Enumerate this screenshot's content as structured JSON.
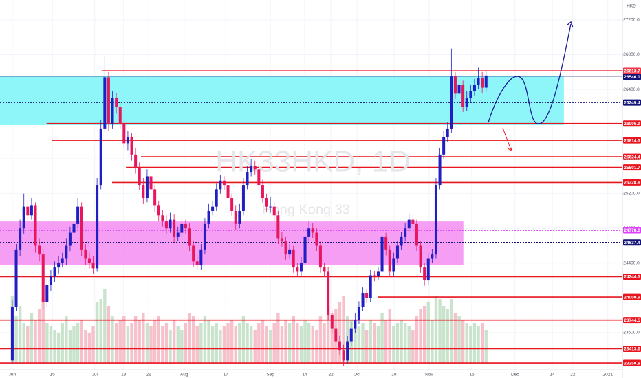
{
  "chart_data": {
    "type": "candlestick",
    "title": "HK33HKD, 1D",
    "subtitle": "Hong Kong 33",
    "currency": "HKD",
    "xlim": [
      -3.2,
      158.4
    ],
    "ylim": [
      23077,
      27429
    ],
    "grid": true,
    "up_color": "#1f1fc4",
    "down_color": "#e8175d",
    "volume_up_color": "#c9e3cc",
    "volume_down_color": "#f6c1cb",
    "xticks": [
      {
        "value": 0,
        "label": "Jun"
      },
      {
        "value": 10.4,
        "label": "15"
      },
      {
        "value": 21.4,
        "label": "Jul"
      },
      {
        "value": 28.9,
        "label": "13"
      },
      {
        "value": 35.4,
        "label": "21"
      },
      {
        "value": 44.6,
        "label": "Aug"
      },
      {
        "value": 55.4,
        "label": "17"
      },
      {
        "value": 67,
        "label": "Sep"
      },
      {
        "value": 75.9,
        "label": "14"
      },
      {
        "value": 82.7,
        "label": "22"
      },
      {
        "value": 89.5,
        "label": "Oct"
      },
      {
        "value": 99.1,
        "label": "19"
      },
      {
        "value": 108.2,
        "label": "Nov"
      },
      {
        "value": 119.3,
        "label": "16"
      },
      {
        "value": 130.5,
        "label": "Dec"
      },
      {
        "value": 140.2,
        "label": "14"
      },
      {
        "value": 145.5,
        "label": "22"
      },
      {
        "value": 154.6,
        "label": "2021"
      }
    ],
    "yticks": [
      {
        "value": 27200,
        "label": "27200.0"
      },
      {
        "value": 26800,
        "label": "26800.0"
      },
      {
        "value": 26400,
        "label": "26400.0"
      },
      {
        "value": 26000,
        "label": "26000.0"
      },
      {
        "value": 25600,
        "label": "25600.0"
      },
      {
        "value": 25200,
        "label": "25200.0"
      },
      {
        "value": 24800,
        "label": "24800.0"
      },
      {
        "value": 24400,
        "label": "24400.0"
      },
      {
        "value": 24000,
        "label": "24000.0"
      },
      {
        "value": 23600,
        "label": "23600.0"
      }
    ],
    "candles": [
      [
        23280,
        23980,
        23250,
        23900
      ],
      [
        23900,
        24620,
        23850,
        24550
      ],
      [
        24550,
        24900,
        24480,
        24800
      ],
      [
        24800,
        25200,
        24740,
        25050
      ],
      [
        25050,
        25120,
        24880,
        24950
      ],
      [
        24950,
        25150,
        24900,
        25060
      ],
      [
        25060,
        25100,
        24520,
        24600
      ],
      [
        24600,
        24680,
        24420,
        24500
      ],
      [
        24500,
        24560,
        23880,
        23950
      ],
      [
        23950,
        24230,
        23900,
        24150
      ],
      [
        24150,
        24320,
        24080,
        24250
      ],
      [
        24250,
        24420,
        24180,
        24350
      ],
      [
        24350,
        24480,
        24280,
        24400
      ],
      [
        24400,
        24520,
        24350,
        24450
      ],
      [
        24450,
        24680,
        24380,
        24600
      ],
      [
        24600,
        24820,
        24540,
        24750
      ],
      [
        24750,
        24930,
        24700,
        24850
      ],
      [
        24850,
        25150,
        24800,
        25050
      ],
      [
        25050,
        25100,
        24480,
        24550
      ],
      [
        24550,
        24620,
        24380,
        24450
      ],
      [
        24450,
        24520,
        24330,
        24400
      ],
      [
        24400,
        24480,
        24280,
        24340
      ],
      [
        24340,
        25380,
        24300,
        25300
      ],
      [
        25300,
        26050,
        25250,
        25950
      ],
      [
        25950,
        26780,
        25900,
        26540
      ],
      [
        26540,
        26600,
        25920,
        26000
      ],
      [
        26000,
        26380,
        25950,
        26300
      ],
      [
        26300,
        26360,
        26120,
        26200
      ],
      [
        26200,
        26260,
        25940,
        26000
      ],
      [
        26000,
        26060,
        25720,
        25780
      ],
      [
        25780,
        25920,
        25700,
        25850
      ],
      [
        25850,
        25900,
        25580,
        25650
      ],
      [
        25650,
        25720,
        25430,
        25500
      ],
      [
        25500,
        25560,
        25240,
        25300
      ],
      [
        25300,
        25380,
        25080,
        25150
      ],
      [
        25150,
        25480,
        25100,
        25400
      ],
      [
        25400,
        25460,
        25180,
        25250
      ],
      [
        25250,
        25300,
        24990,
        25060
      ],
      [
        25060,
        25120,
        24880,
        24950
      ],
      [
        24950,
        25010,
        24820,
        24880
      ],
      [
        24880,
        24950,
        24740,
        24800
      ],
      [
        24800,
        24980,
        24750,
        24900
      ],
      [
        24900,
        24960,
        24640,
        24700
      ],
      [
        24700,
        24820,
        24650,
        24750
      ],
      [
        24750,
        24920,
        24700,
        24850
      ],
      [
        24850,
        24900,
        24740,
        24800
      ],
      [
        24800,
        24860,
        24540,
        24600
      ],
      [
        24600,
        24660,
        24360,
        24420
      ],
      [
        24420,
        24480,
        24320,
        24380
      ],
      [
        24380,
        24620,
        24320,
        24550
      ],
      [
        24550,
        24920,
        24500,
        24850
      ],
      [
        24850,
        25080,
        24800,
        25000
      ],
      [
        25000,
        25120,
        24950,
        25050
      ],
      [
        25050,
        25320,
        25000,
        25250
      ],
      [
        25250,
        25420,
        25200,
        25350
      ],
      [
        25350,
        25400,
        25240,
        25300
      ],
      [
        25300,
        25360,
        25090,
        25150
      ],
      [
        25150,
        25200,
        24940,
        25000
      ],
      [
        25000,
        25060,
        24780,
        24850
      ],
      [
        24850,
        25080,
        24800,
        25000
      ],
      [
        25000,
        25380,
        24950,
        25300
      ],
      [
        25300,
        25520,
        25250,
        25450
      ],
      [
        25450,
        25600,
        25400,
        25520
      ],
      [
        25520,
        25580,
        25420,
        25480
      ],
      [
        25480,
        25540,
        25240,
        25300
      ],
      [
        25300,
        25360,
        25090,
        25150
      ],
      [
        25150,
        25200,
        24990,
        25050
      ],
      [
        25050,
        25160,
        24980,
        25050
      ],
      [
        25050,
        25100,
        24880,
        24950
      ],
      [
        24950,
        25000,
        24620,
        24680
      ],
      [
        24680,
        24760,
        24590,
        24650
      ],
      [
        24650,
        24700,
        24440,
        24500
      ],
      [
        24500,
        24620,
        24450,
        24550
      ],
      [
        24550,
        24600,
        24290,
        24350
      ],
      [
        24350,
        24400,
        24240,
        24300
      ],
      [
        24300,
        24470,
        24250,
        24400
      ],
      [
        24400,
        24780,
        24350,
        24700
      ],
      [
        24700,
        24880,
        24650,
        24800
      ],
      [
        24800,
        24860,
        24690,
        24750
      ],
      [
        24750,
        24800,
        24540,
        24600
      ],
      [
        24600,
        24650,
        24290,
        24350
      ],
      [
        24350,
        24400,
        24240,
        24300
      ],
      [
        24300,
        24360,
        23740,
        23800
      ],
      [
        23800,
        23860,
        23590,
        23650
      ],
      [
        23650,
        23700,
        23440,
        23500
      ],
      [
        23500,
        23560,
        23340,
        23400
      ],
      [
        23400,
        23460,
        23220,
        23280
      ],
      [
        23280,
        23560,
        23240,
        23500
      ],
      [
        23500,
        23720,
        23450,
        23650
      ],
      [
        23650,
        23820,
        23600,
        23750
      ],
      [
        23750,
        23960,
        23700,
        23900
      ],
      [
        23900,
        24120,
        23850,
        24050
      ],
      [
        24050,
        24100,
        23940,
        24000
      ],
      [
        24000,
        24320,
        23950,
        24260
      ],
      [
        24260,
        24310,
        24190,
        24250
      ],
      [
        24250,
        24360,
        24200,
        24300
      ],
      [
        24300,
        24770,
        24250,
        24700
      ],
      [
        24700,
        24750,
        24490,
        24550
      ],
      [
        24550,
        24600,
        24240,
        24300
      ],
      [
        24300,
        24520,
        24250,
        24450
      ],
      [
        24450,
        24660,
        24400,
        24600
      ],
      [
        24600,
        24760,
        24550,
        24700
      ],
      [
        24700,
        24860,
        24650,
        24800
      ],
      [
        24800,
        24960,
        24750,
        24900
      ],
      [
        24900,
        24950,
        24790,
        24850
      ],
      [
        24850,
        24900,
        24540,
        24600
      ],
      [
        24600,
        24650,
        24290,
        24350
      ],
      [
        24350,
        24400,
        24140,
        24200
      ],
      [
        24200,
        24520,
        24150,
        24450
      ],
      [
        24450,
        24560,
        24400,
        24500
      ],
      [
        24500,
        25380,
        24450,
        25300
      ],
      [
        25300,
        25720,
        25250,
        25650
      ],
      [
        25650,
        25920,
        25600,
        25850
      ],
      [
        25850,
        26020,
        25800,
        25950
      ],
      [
        25950,
        26870,
        25900,
        26550
      ],
      [
        26550,
        26600,
        26290,
        26350
      ],
      [
        26350,
        26520,
        26300,
        26450
      ],
      [
        26450,
        26500,
        26140,
        26200
      ],
      [
        26200,
        26380,
        26150,
        26300
      ],
      [
        26300,
        26450,
        26250,
        26380
      ],
      [
        26380,
        26520,
        26330,
        26450
      ],
      [
        26450,
        26650,
        26400,
        26530
      ],
      [
        26530,
        26600,
        26360,
        26420
      ],
      [
        26420,
        26620,
        26370,
        26560
      ]
    ],
    "volume": [
      100,
      70,
      85,
      60,
      55,
      75,
      65,
      80,
      95,
      60,
      55,
      50,
      45,
      60,
      70,
      50,
      55,
      60,
      65,
      50,
      45,
      55,
      90,
      95,
      110,
      85,
      70,
      60,
      65,
      70,
      55,
      60,
      70,
      65,
      75,
      60,
      55,
      65,
      70,
      55,
      60,
      50,
      65,
      55,
      50,
      60,
      75,
      70,
      55,
      60,
      70,
      65,
      55,
      60,
      50,
      55,
      60,
      65,
      55,
      60,
      70,
      60,
      55,
      50,
      60,
      65,
      55,
      50,
      60,
      75,
      55,
      65,
      60,
      70,
      60,
      55,
      65,
      60,
      55,
      50,
      70,
      60,
      85,
      75,
      80,
      90,
      100,
      70,
      65,
      60,
      55,
      60,
      50,
      65,
      60,
      55,
      75,
      65,
      80,
      55,
      60,
      65,
      60,
      55,
      50,
      70,
      80,
      85,
      90,
      65,
      100,
      95,
      85,
      80,
      95,
      75,
      70,
      65,
      60,
      55,
      60,
      55,
      60,
      50
    ],
    "zones": [
      {
        "top": 26558,
        "bottom": 25989,
        "end": 143.2,
        "color": "#7af5f7"
      },
      {
        "top": 24880,
        "bottom": 24380,
        "end": 117.1,
        "color": "#f58cf2"
      }
    ],
    "levels": [
      {
        "price": 26613.7,
        "start": 23.2,
        "color": "#f23645",
        "style": "solid"
      },
      {
        "price": {
          "value": 26546,
          "label": "26546.0"
        },
        "start": -3.2,
        "color": "#131377",
        "style": "thin"
      },
      {
        "price": 26249.4,
        "start": -3.2,
        "color": "#131377",
        "style": "dotted"
      },
      {
        "price": 26006.9,
        "start": 8.9,
        "color": "#e8141e",
        "style": "solid"
      },
      {
        "price": 25814.3,
        "start": 10.2,
        "color": "#e8141e",
        "style": "solid"
      },
      {
        "price": 25624.4,
        "start": 33.4,
        "color": "#e8141e",
        "style": "solid"
      },
      {
        "price": 25501.7,
        "start": 29.5,
        "color": "#e8141e",
        "style": "solid"
      },
      {
        "price": 25328.8,
        "start": 25.9,
        "color": "#e8141e",
        "style": "solid"
      },
      {
        "price": {
          "value": 24778,
          "label": "24778.0"
        },
        "start": -3.2,
        "color": "#e040fb",
        "style": "dotted"
      },
      {
        "price": 24637.4,
        "start": -3.2,
        "color": "#131377",
        "style": "dotted"
      },
      {
        "price": 24244.3,
        "start": -3.2,
        "color": "#e8141e",
        "style": "solid"
      },
      {
        "price": 24009.9,
        "start": 95,
        "color": "#e8141e",
        "style": "solid"
      },
      {
        "price": 23744.5,
        "start": -3.2,
        "color": "#e8141e",
        "style": "solid"
      },
      {
        "price": 23413.6,
        "start": -3.2,
        "color": "#e8141e",
        "style": "solid"
      },
      {
        "price": 23250.8,
        "start": -3.2,
        "color": "#e8141e",
        "style": "solid"
      }
    ]
  }
}
